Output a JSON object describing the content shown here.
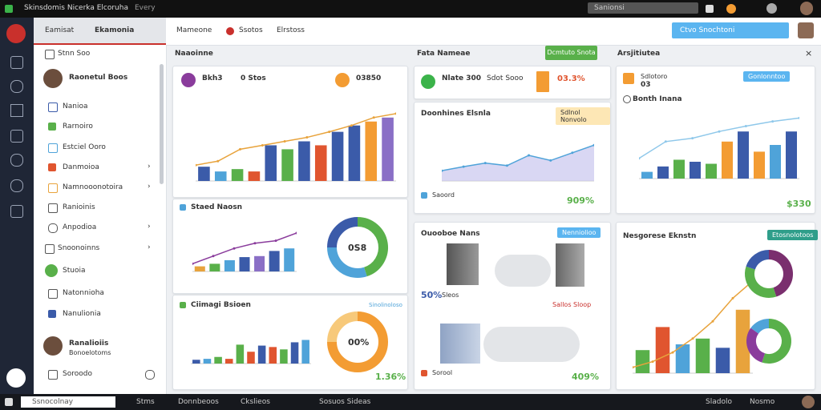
{
  "window": {
    "title": "Skinsdomis Nicerka Elcoruha",
    "subtitle": "Every",
    "search": "Sanionsi"
  },
  "header": {
    "tabs": [
      "Eamisat",
      "Ekamonia"
    ],
    "nav": [
      "Mameone",
      "Ssotos",
      "Elrstoss"
    ],
    "search": "Ctvo Snochtoni"
  },
  "toolbar": {
    "left": "Naaoinne",
    "middle": "Fata Nameae",
    "button": "Dcmtuto Snota",
    "right": "Arsjitiutea"
  },
  "sidebar": {
    "filter": "Stnn Soo",
    "user": "Raonetul Boos",
    "items": [
      "Nanioa",
      "Rarnoiro",
      "Estciel Ooro",
      "Danmoioa",
      "Namnooonotoira",
      "Ranioinis",
      "Anpodioa",
      "Snoonoinns",
      "Stuoia",
      "Natonnioha",
      "Nanulionia"
    ],
    "user2": "Ranalioiis",
    "user2_sub": "Bonoelotoms",
    "bottom": "Soroodo"
  },
  "cards": {
    "c1": {
      "stats": [
        "Bkh3",
        "0 Stos",
        "03850"
      ]
    },
    "c2": {
      "title": "Staed Naosn",
      "donut": "0S8"
    },
    "c3": {
      "title": "Ciimagi Bsioen",
      "link": "Sinolinoloso",
      "donut": "00%",
      "value": "1.36%"
    },
    "c4": {
      "stats": [
        "Nlate 300",
        "Sdot Sooo",
        "03.3%"
      ]
    },
    "c5": {
      "title": "Doonhines Elsnla",
      "badge": "Sdlnol Nonvolo",
      "legend": "Saoord",
      "value": "909%"
    },
    "c6": {
      "title": "Ouooboe Nans",
      "badge": "Nenniolioo",
      "value": "50%",
      "sub": "Sleos",
      "note": "Sallos Sloop",
      "legend": "Sorool",
      "footer": "409%"
    },
    "c7": {
      "stats": [
        "Sdlotoro",
        "03"
      ],
      "badge": "Gonlonntoo",
      "title": "Bonth Inana",
      "value": "$330"
    },
    "c8": {
      "title": "Nesgorese Eknstn",
      "badge": "Etosnolotoos"
    }
  },
  "charts": [
    {
      "ylim": [
        0,
        100
      ],
      "bars": [
        18,
        12,
        15,
        12,
        45,
        40,
        50,
        45,
        62,
        70,
        75,
        80
      ],
      "colors": [
        "#3b5ba9",
        "#4fa3d9",
        "#59b04a",
        "#e0552f",
        "#3b5ba9",
        "#59b04a",
        "#3b5ba9",
        "#e0552f",
        "#3b5ba9",
        "#3b5ba9",
        "#f39c33",
        "#8a6fc6"
      ],
      "line": [
        20,
        25,
        40,
        45,
        50,
        55,
        62,
        70,
        80,
        85
      ],
      "line_color": "#e8a33c"
    },
    {
      "ylim": [
        0,
        100
      ],
      "bars": [
        10,
        15,
        22,
        28,
        30,
        40,
        45
      ],
      "colors": [
        "#e8a33c",
        "#59b04a",
        "#4fa3d9",
        "#3b5ba9",
        "#8a6fc6",
        "#3b5ba9",
        "#4fa3d9"
      ],
      "line": [
        15,
        30,
        45,
        55,
        60,
        75
      ],
      "line_color": "#8a3c9c"
    },
    {
      "ylim": [
        0,
        100
      ],
      "bars": [
        8,
        10,
        14,
        10,
        40,
        25,
        38,
        35,
        30,
        45,
        50
      ],
      "colors": [
        "#3b5ba9",
        "#4fa3d9",
        "#59b04a",
        "#e0552f",
        "#59b04a",
        "#e0552f",
        "#3b5ba9",
        "#e0552f",
        "#59b04a",
        "#3b5ba9",
        "#4fa3d9"
      ]
    },
    {
      "ylim": [
        0,
        100
      ],
      "line": [
        20,
        28,
        35,
        30,
        50,
        40,
        55,
        70
      ],
      "line_color": "#4fa3d9",
      "area_color": "#c9c6ee"
    },
    {
      "ylim": [
        0,
        100
      ],
      "bars": [
        10,
        18,
        28,
        25,
        22,
        55,
        70,
        40,
        50,
        70
      ],
      "colors": [
        "#4fa3d9",
        "#3b5ba9",
        "#59b04a",
        "#3b5ba9",
        "#59b04a",
        "#f39c33",
        "#3b5ba9",
        "#f39c33",
        "#4fa3d9",
        "#3b5ba9"
      ],
      "line": [
        30,
        55,
        60,
        70,
        78,
        85,
        90
      ],
      "line_color": "#8fc8ea"
    },
    {
      "ylim": [
        0,
        100
      ],
      "bars": [
        20,
        40,
        25,
        30,
        22,
        55
      ],
      "colors": [
        "#59b04a",
        "#e0552f",
        "#4fa3d9",
        "#59b04a",
        "#3b5ba9",
        "#e8a33c"
      ],
      "line": [
        5,
        10,
        18,
        30,
        45,
        65,
        80
      ],
      "line_color": "#e8a33c"
    }
  ],
  "donuts": [
    {
      "values": [
        45,
        30,
        25
      ],
      "colors": [
        "#59b04a",
        "#4fa3d9",
        "#3b5ba9"
      ]
    },
    {
      "values": [
        75,
        25
      ],
      "colors": [
        "#f39c33",
        "#f7c97a"
      ]
    },
    {
      "values": [
        45,
        35,
        20
      ],
      "colors": [
        "#7a2f6e",
        "#59b04a",
        "#3b5ba9"
      ]
    },
    {
      "values": [
        55,
        30,
        15
      ],
      "colors": [
        "#59b04a",
        "#8a3c9c",
        "#4fa3d9"
      ]
    }
  ],
  "taskbar": [
    "Ssnocolnay",
    "Stms",
    "Donnbeoos",
    "Ckslieos",
    "Sosuos Sideas",
    "Sladolo",
    "Nosmo"
  ]
}
